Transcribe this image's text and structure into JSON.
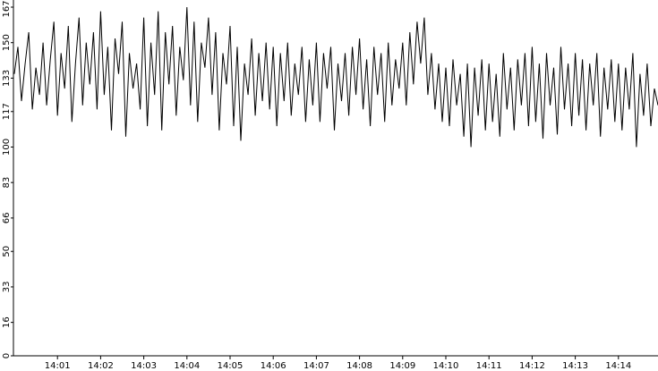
{
  "chart_data": {
    "type": "line",
    "color": "#000000",
    "categories": [
      null,
      null,
      null,
      null,
      null,
      null,
      null,
      null,
      null,
      null,
      null,
      null,
      "14:01",
      null,
      null,
      null,
      null,
      null,
      null,
      null,
      null,
      null,
      null,
      null,
      "14:02",
      null,
      null,
      null,
      null,
      null,
      null,
      null,
      null,
      null,
      null,
      null,
      "14:03",
      null,
      null,
      null,
      null,
      null,
      null,
      null,
      null,
      null,
      null,
      null,
      "14:04",
      null,
      null,
      null,
      null,
      null,
      null,
      null,
      null,
      null,
      null,
      null,
      "14:05",
      null,
      null,
      null,
      null,
      null,
      null,
      null,
      null,
      null,
      null,
      null,
      "14:06",
      null,
      null,
      null,
      null,
      null,
      null,
      null,
      null,
      null,
      null,
      null,
      "14:07",
      null,
      null,
      null,
      null,
      null,
      null,
      null,
      null,
      null,
      null,
      null,
      "14:08",
      null,
      null,
      null,
      null,
      null,
      null,
      null,
      null,
      null,
      null,
      null,
      "14:09",
      null,
      null,
      null,
      null,
      null,
      null,
      null,
      null,
      null,
      null,
      null,
      "14:10",
      null,
      null,
      null,
      null,
      null,
      null,
      null,
      null,
      null,
      null,
      null,
      "14:11",
      null,
      null,
      null,
      null,
      null,
      null,
      null,
      null,
      null,
      null,
      null,
      "14:12",
      null,
      null,
      null,
      null,
      null,
      null,
      null,
      null,
      null,
      null,
      null,
      "14:13",
      null,
      null,
      null,
      null,
      null,
      null,
      null,
      null,
      null,
      null,
      null,
      "14:14",
      null,
      null,
      null,
      null,
      null,
      null,
      null,
      null,
      null,
      null,
      null
    ],
    "values": [
      135,
      148,
      122,
      140,
      155,
      118,
      138,
      125,
      150,
      120,
      142,
      160,
      115,
      145,
      128,
      158,
      112,
      140,
      162,
      120,
      150,
      130,
      155,
      118,
      165,
      125,
      148,
      108,
      152,
      135,
      160,
      105,
      145,
      128,
      140,
      118,
      162,
      110,
      150,
      125,
      165,
      108,
      155,
      130,
      158,
      115,
      148,
      132,
      167,
      120,
      160,
      112,
      150,
      138,
      162,
      125,
      155,
      108,
      145,
      130,
      158,
      110,
      148,
      103,
      140,
      125,
      152,
      115,
      145,
      122,
      150,
      118,
      148,
      110,
      145,
      122,
      150,
      115,
      140,
      125,
      148,
      112,
      142,
      120,
      150,
      112,
      145,
      128,
      148,
      108,
      140,
      122,
      145,
      115,
      148,
      125,
      152,
      118,
      142,
      110,
      148,
      125,
      145,
      112,
      150,
      120,
      142,
      128,
      150,
      120,
      155,
      130,
      160,
      140,
      162,
      125,
      145,
      118,
      140,
      112,
      138,
      110,
      142,
      120,
      135,
      105,
      140,
      100,
      138,
      115,
      142,
      108,
      140,
      112,
      135,
      105,
      145,
      118,
      138,
      108,
      142,
      120,
      145,
      110,
      148,
      112,
      140,
      104,
      145,
      120,
      138,
      106,
      148,
      118,
      140,
      110,
      145,
      115,
      142,
      108,
      140,
      120,
      145,
      105,
      138,
      118,
      142,
      112,
      140,
      108,
      138,
      118,
      145,
      100,
      135,
      115,
      140,
      110,
      128,
      120
    ],
    "ylim": [
      0,
      167
    ],
    "yticks": [
      0,
      16,
      33,
      50,
      66,
      83,
      100,
      117,
      133,
      150,
      167
    ]
  }
}
